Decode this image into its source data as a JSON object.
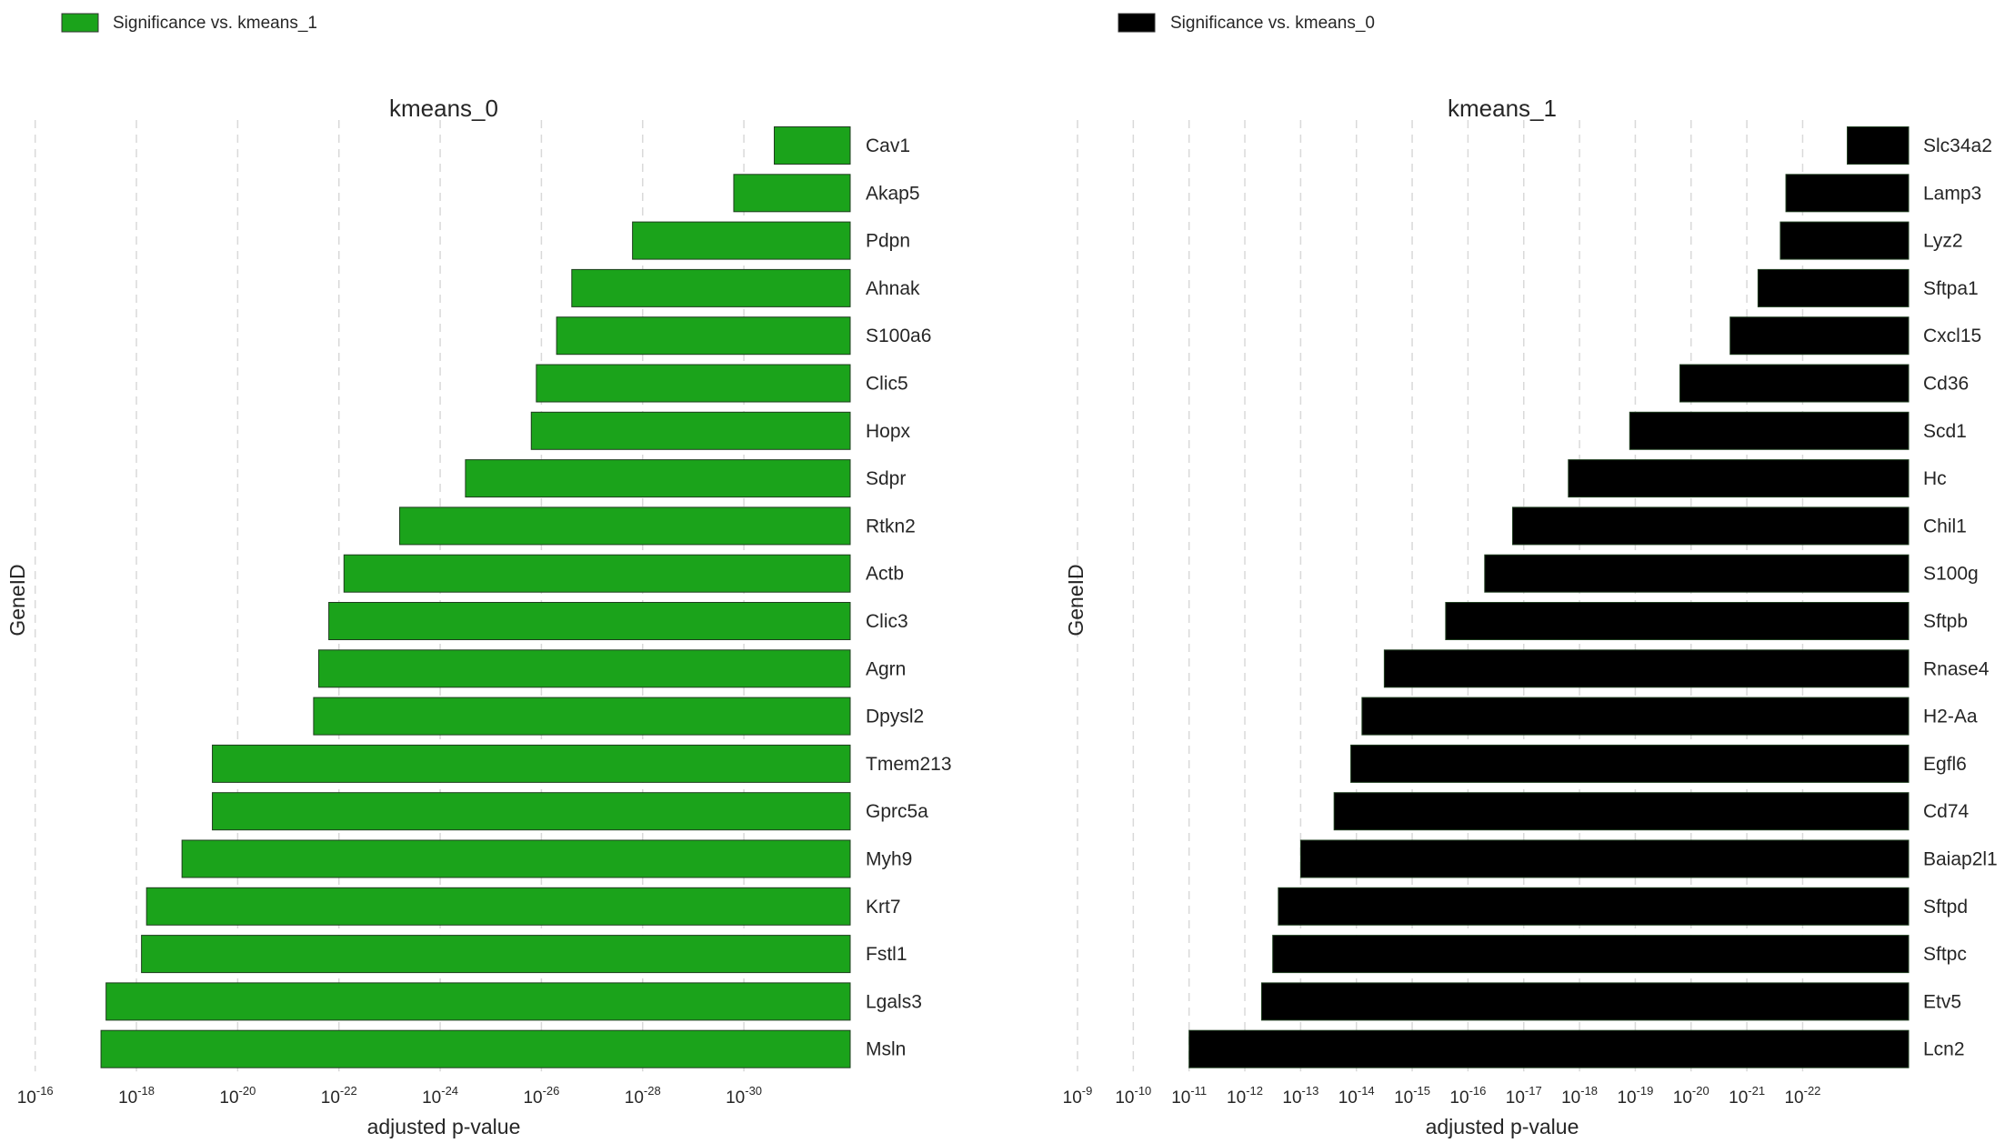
{
  "legends": [
    {
      "label": "Significance vs. kmeans_1",
      "color": "#1ba31b"
    },
    {
      "label": "Significance vs. kmeans_0",
      "color": "#000000"
    }
  ],
  "chart_data": [
    {
      "type": "bar",
      "orientation": "horizontal",
      "title": "kmeans_0",
      "xlabel": "adjusted p-value",
      "ylabel": "GeneID",
      "x_scale": "log",
      "x_axis_reversed": true,
      "x_ticks": [
        "10^-16",
        "10^-18",
        "10^-20",
        "10^-22",
        "10^-24",
        "10^-26",
        "10^-28",
        "10^-30"
      ],
      "grid": true,
      "legend_position": "top-left",
      "bar_color": "#1ba31b",
      "categories": [
        "Cav1",
        "Akap5",
        "Pdpn",
        "Ahnak",
        "S100a6",
        "Clic5",
        "Hopx",
        "Sdpr",
        "Rtkn2",
        "Actb",
        "Clic3",
        "Agrn",
        "Dpysl2",
        "Tmem213",
        "Gprc5a",
        "Myh9",
        "Krt7",
        "Fstl1",
        "Lgals3",
        "Msln"
      ],
      "values": [
        "1e-30.6",
        "1e-29.8",
        "1e-27.8",
        "1e-26.6",
        "1e-26.3",
        "1e-25.9",
        "1e-25.8",
        "1e-24.5",
        "1e-23.2",
        "1e-22.1",
        "1e-21.8",
        "1e-21.6",
        "1e-21.5",
        "1e-19.5",
        "1e-19.5",
        "1e-18.9",
        "1e-18.2",
        "1e-18.1",
        "1e-17.4",
        "1e-17.3"
      ],
      "log10_values": [
        -30.6,
        -29.8,
        -27.8,
        -26.6,
        -26.3,
        -25.9,
        -25.8,
        -24.5,
        -23.2,
        -22.1,
        -21.8,
        -21.6,
        -21.5,
        -19.5,
        -19.5,
        -18.9,
        -18.2,
        -18.1,
        -17.4,
        -17.3
      ],
      "xlim_log10": [
        -15.7,
        -32.1
      ]
    },
    {
      "type": "bar",
      "orientation": "horizontal",
      "title": "kmeans_1",
      "xlabel": "adjusted p-value",
      "ylabel": "GeneID",
      "x_scale": "log",
      "x_axis_reversed": true,
      "x_ticks": [
        "10^-9",
        "10^-10",
        "10^-11",
        "10^-12",
        "10^-13",
        "10^-14",
        "10^-15",
        "10^-16",
        "10^-17",
        "10^-18",
        "10^-19",
        "10^-20",
        "10^-21",
        "10^-22"
      ],
      "grid": true,
      "legend_position": "top-left",
      "bar_color": "#000000",
      "categories": [
        "Slc34a2",
        "Lamp3",
        "Lyz2",
        "Sftpa1",
        "Cxcl15",
        "Cd36",
        "Scd1",
        "Hc",
        "Chil1",
        "S100g",
        "Sftpb",
        "Rnase4",
        "H2-Aa",
        "Egfl6",
        "Cd74",
        "Baiap2l1",
        "Sftpd",
        "Sftpc",
        "Etv5",
        "Lcn2"
      ],
      "values": [
        "1e-22.8",
        "1e-21.7",
        "1e-21.6",
        "1e-21.2",
        "1e-20.7",
        "1e-19.8",
        "1e-18.9",
        "1e-17.8",
        "1e-16.8",
        "1e-16.3",
        "1e-15.6",
        "1e-14.5",
        "1e-14.1",
        "1e-13.9",
        "1e-13.6",
        "1e-13.0",
        "1e-12.6",
        "1e-12.5",
        "1e-12.3",
        "1e-11.0"
      ],
      "log10_values": [
        -22.8,
        -21.7,
        -21.6,
        -21.2,
        -20.7,
        -19.8,
        -18.9,
        -17.8,
        -16.8,
        -16.3,
        -15.6,
        -14.5,
        -14.1,
        -13.9,
        -13.6,
        -13.0,
        -12.6,
        -12.5,
        -12.3,
        -11.0
      ],
      "xlim_log10": [
        -9.0,
        -23.9
      ]
    }
  ]
}
